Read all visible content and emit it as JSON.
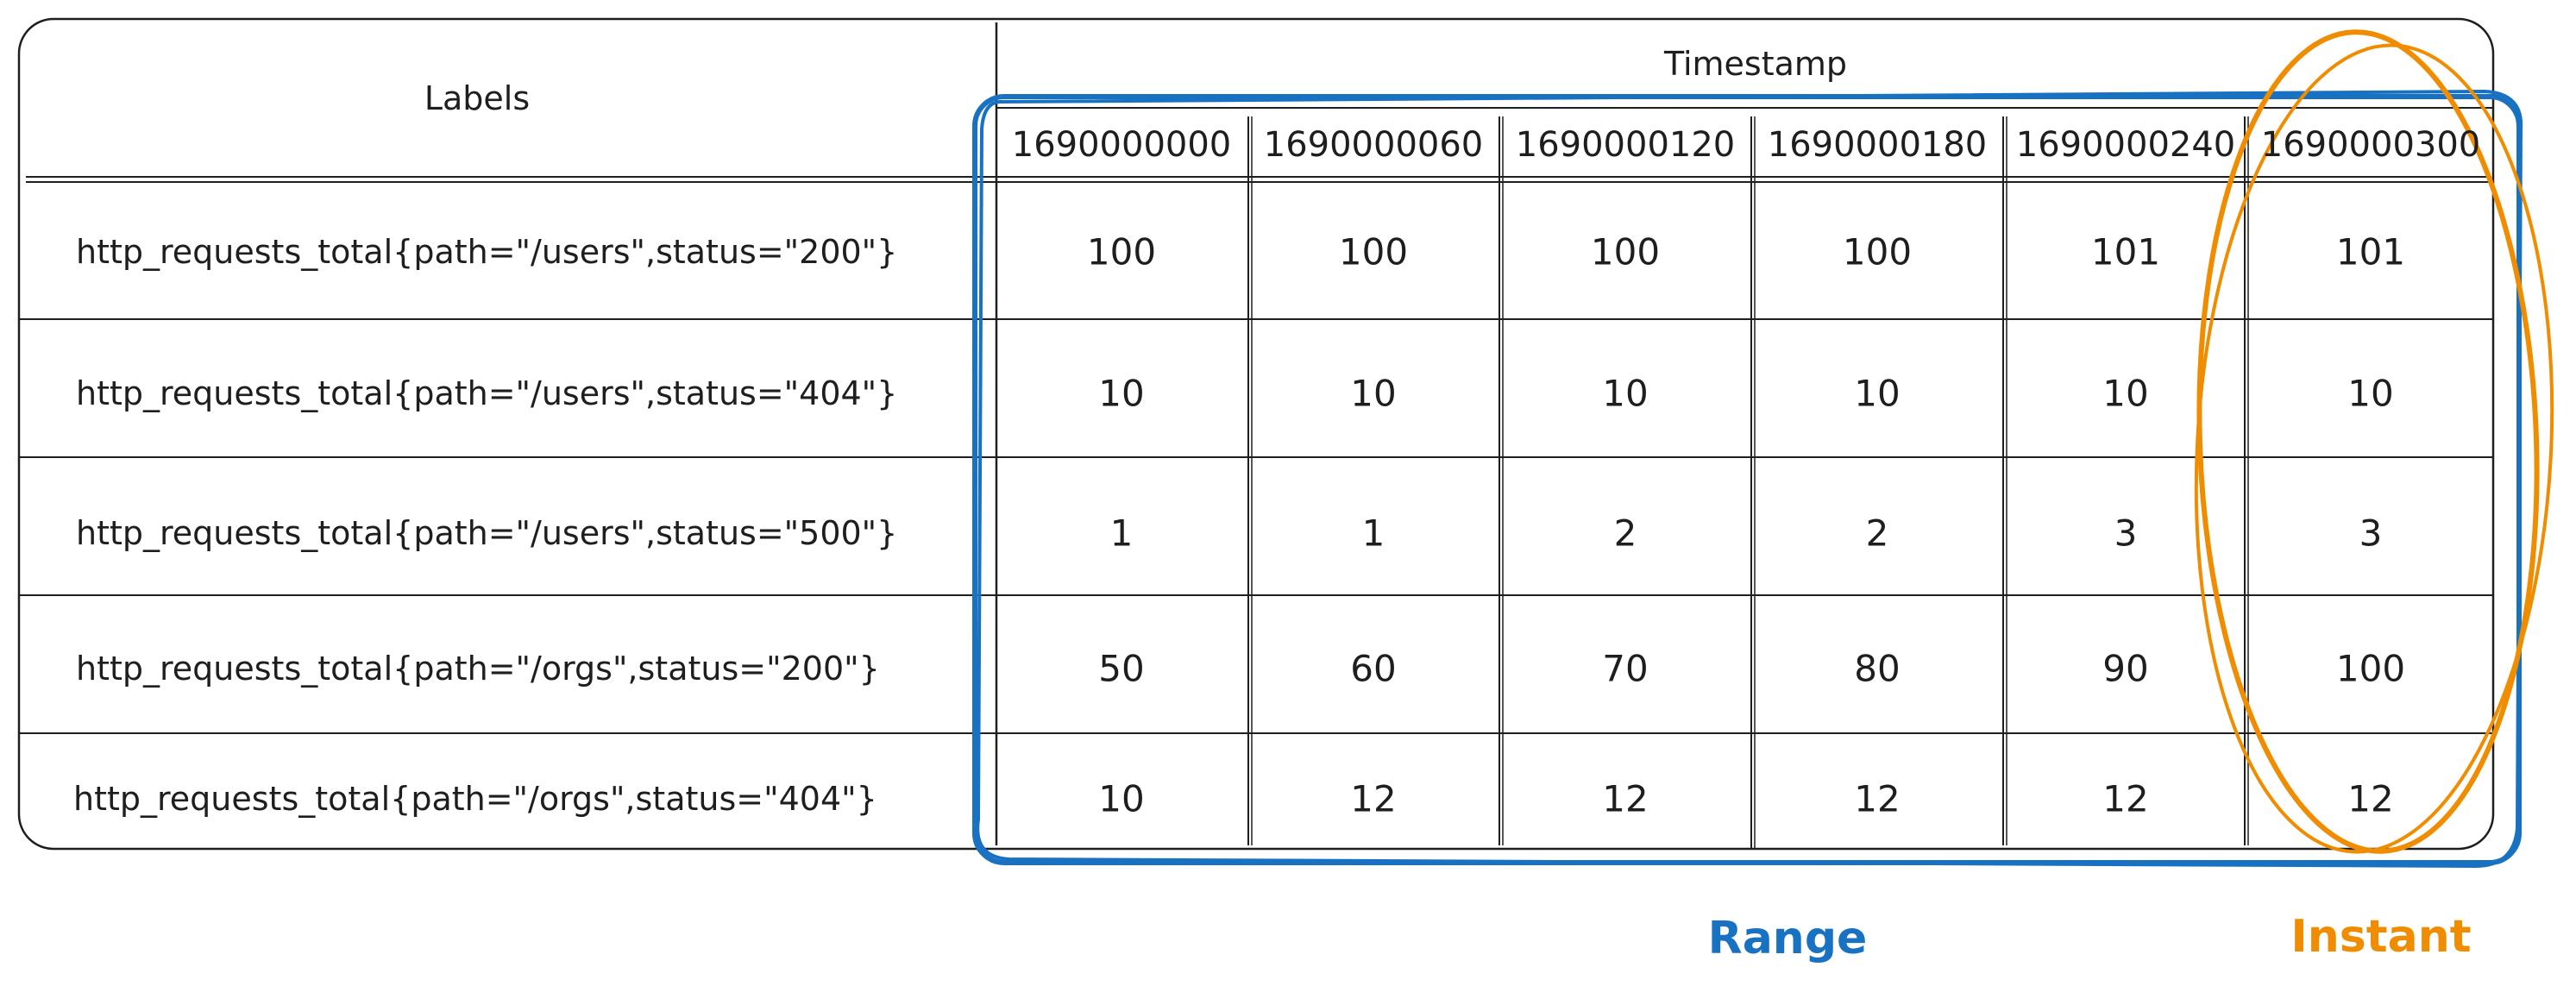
{
  "table": {
    "labels_header": "Labels",
    "timestamp_header": "Timestamp",
    "timestamps": [
      "1690000000",
      "1690000060",
      "1690000120",
      "1690000180",
      "1690000240",
      "1690000300"
    ],
    "rows": [
      {
        "label": "http_requests_total{path=\"/users\",status=\"200\"}",
        "values": [
          "100",
          "100",
          "100",
          "100",
          "101",
          "101"
        ]
      },
      {
        "label": "http_requests_total{path=\"/users\",status=\"404\"}",
        "values": [
          "10",
          "10",
          "10",
          "10",
          "10",
          "10"
        ]
      },
      {
        "label": "http_requests_total{path=\"/users\",status=\"500\"}",
        "values": [
          "1",
          "1",
          "2",
          "2",
          "3",
          "3"
        ]
      },
      {
        "label": "http_requests_total{path=\"/orgs\",status=\"200\"}",
        "values": [
          "50",
          "60",
          "70",
          "80",
          "90",
          "100"
        ]
      },
      {
        "label": "http_requests_total{path=\"/orgs\",status=\"404\"}",
        "values": [
          "10",
          "12",
          "12",
          "12",
          "12",
          "12"
        ]
      }
    ]
  },
  "annotations": {
    "range_label": "Range",
    "instant_label": "Instant",
    "range_color": "#1971c2",
    "instant_color": "#f08c00"
  }
}
